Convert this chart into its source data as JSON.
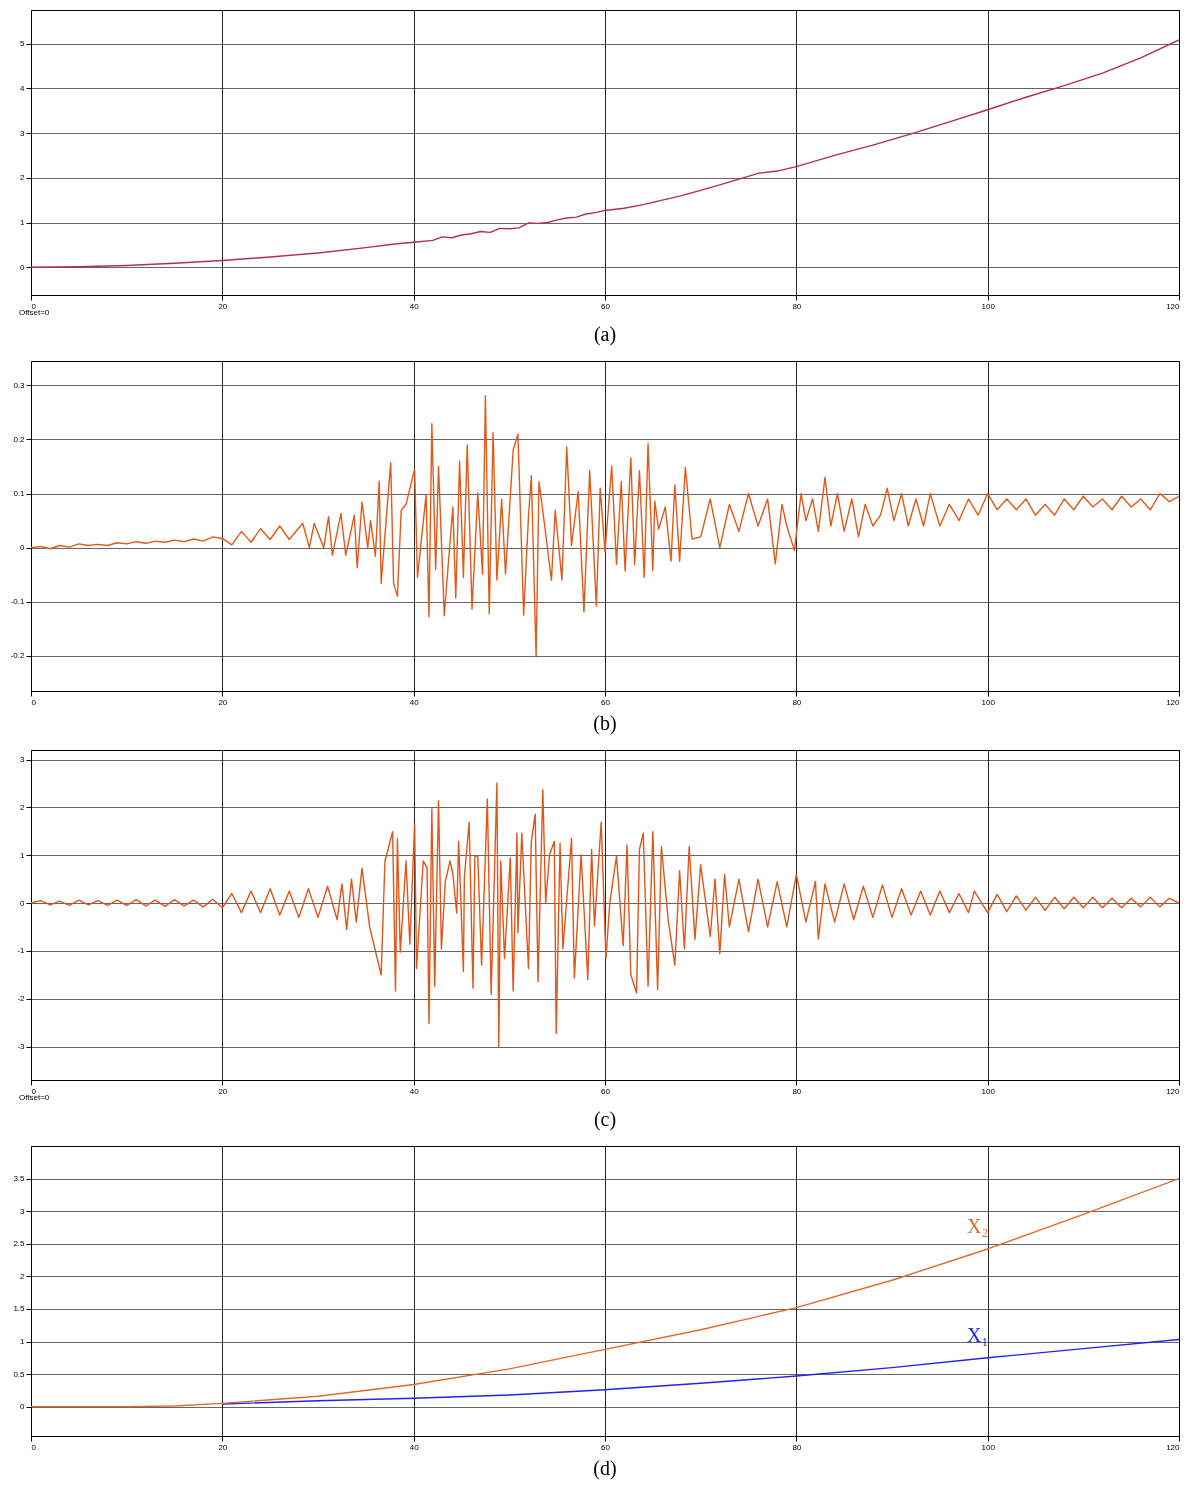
{
  "chart_data": [
    {
      "type": "line",
      "title": "(a)",
      "annotations": [
        "Offset=0"
      ],
      "xlim": [
        0,
        120
      ],
      "xticks": [
        0,
        20,
        40,
        60,
        80,
        100,
        120
      ],
      "ylim": [
        -0.62,
        5.75
      ],
      "yticks": [
        0,
        1,
        2,
        3,
        4,
        5
      ],
      "grid": true,
      "series": [
        {
          "color": "#b03050",
          "x": [
            0,
            5,
            10,
            15,
            20,
            25,
            30,
            35,
            38,
            40,
            42,
            43,
            44,
            45,
            46,
            47,
            48,
            49,
            50,
            51,
            52,
            53,
            54,
            55,
            56,
            57,
            58,
            59,
            60,
            62,
            64,
            66,
            68,
            70,
            72,
            74,
            76,
            78,
            80,
            84,
            88,
            92,
            96,
            100,
            104,
            108,
            112,
            116,
            120
          ],
          "values": [
            0,
            0.01,
            0.04,
            0.09,
            0.15,
            0.23,
            0.32,
            0.44,
            0.52,
            0.56,
            0.6,
            0.68,
            0.66,
            0.72,
            0.75,
            0.8,
            0.78,
            0.87,
            0.86,
            0.88,
            0.99,
            0.98,
            1.0,
            1.06,
            1.1,
            1.12,
            1.19,
            1.22,
            1.27,
            1.32,
            1.4,
            1.5,
            1.6,
            1.72,
            1.84,
            1.97,
            2.1,
            2.15,
            2.25,
            2.5,
            2.73,
            2.98,
            3.25,
            3.52,
            3.8,
            4.06,
            4.34,
            4.68,
            5.08
          ]
        }
      ]
    },
    {
      "type": "line",
      "title": "(b)",
      "xlim": [
        0,
        120
      ],
      "xticks": [
        0,
        20,
        40,
        60,
        80,
        100,
        120
      ],
      "ylim": [
        -0.265,
        0.345
      ],
      "yticks": [
        -0.2,
        -0.1,
        0,
        0.1,
        0.2,
        0.3
      ],
      "grid": true,
      "series": [
        {
          "color": "#e05a1a",
          "x": [
            0,
            1,
            2,
            3,
            4,
            5,
            6,
            7,
            8,
            9,
            10,
            11,
            12,
            13,
            14,
            15,
            16,
            17,
            18,
            19,
            20,
            21,
            22,
            23,
            24,
            25,
            26,
            27,
            28.4,
            29.1,
            29.6,
            30.6,
            31.1,
            31.5,
            32.4,
            32.9,
            33.8,
            34.1,
            34.6,
            35.2,
            35.5,
            36.0,
            36.4,
            36.6,
            37.6,
            37.9,
            38.3,
            38.7,
            39.2,
            40.1,
            40.4,
            41.3,
            41.6,
            41.9,
            42.3,
            42.6,
            43.2,
            43.6,
            44.1,
            44.4,
            44.8,
            45.2,
            45.6,
            46.1,
            46.7,
            47.2,
            47.5,
            47.9,
            48.3,
            48.7,
            49.2,
            49.6,
            50.4,
            50.9,
            51.5,
            52.0,
            52.3,
            52.8,
            53.1,
            53.7,
            54.4,
            54.8,
            55.5,
            56.0,
            56.5,
            57.2,
            57.8,
            58.4,
            59.1,
            59.5,
            60.0,
            60.7,
            61.2,
            61.7,
            62.1,
            62.7,
            63.1,
            63.6,
            64.1,
            64.5,
            65.0,
            65.2,
            65.6,
            66.3,
            66.9,
            67.3,
            67.8,
            68.4,
            69.1,
            70,
            71,
            72,
            73,
            74,
            75,
            76,
            77,
            77.8,
            78.5,
            79,
            79.8,
            80.5,
            81,
            81.7,
            82.3,
            83,
            83.6,
            84.3,
            85,
            85.8,
            86.5,
            87.2,
            88,
            88.8,
            89.5,
            90.2,
            91,
            91.7,
            92.5,
            93.3,
            94,
            95,
            96,
            97,
            98,
            99,
            100,
            101,
            102,
            103,
            104,
            105,
            106,
            107,
            108,
            109,
            110,
            111,
            112,
            113,
            114,
            115,
            116,
            117,
            118,
            119,
            120
          ],
          "values": [
            0,
            0.002,
            -0.002,
            0.004,
            0.001,
            0.007,
            0.004,
            0.006,
            0.004,
            0.009,
            0.007,
            0.011,
            0.008,
            0.012,
            0.01,
            0.014,
            0.011,
            0.016,
            0.012,
            0.02,
            0.017,
            0.005,
            0.03,
            0.01,
            0.035,
            0.015,
            0.04,
            0.015,
            0.045,
            0,
            0.045,
            0,
            0.057,
            -0.014,
            0.063,
            -0.014,
            0.06,
            -0.037,
            0.084,
            0,
            0.05,
            -0.016,
            0.123,
            -0.066,
            0.157,
            -0.066,
            -0.09,
            0.069,
            0.08,
            0.145,
            -0.055,
            0.098,
            -0.128,
            0.229,
            -0.04,
            0.15,
            -0.126,
            -0.034,
            0.075,
            -0.093,
            0.16,
            -0.055,
            0.19,
            -0.114,
            0.101,
            -0.049,
            0.281,
            -0.122,
            0.213,
            -0.06,
            0.089,
            -0.049,
            0.18,
            0.21,
            -0.125,
            0.057,
            0.133,
            -0.202,
            0.122,
            0.04,
            -0.06,
            0.069,
            -0.06,
            0.186,
            0.004,
            0.104,
            -0.119,
            0.142,
            -0.108,
            0.11,
            -0.008,
            0.151,
            -0.031,
            0.122,
            -0.043,
            0.166,
            -0.031,
            0.142,
            -0.055,
            0.192,
            -0.043,
            0.086,
            0.034,
            0.075,
            -0.025,
            0.116,
            -0.025,
            0.148,
            0.016,
            0.02,
            0.09,
            0,
            0.08,
            0.03,
            0.1,
            0.04,
            0.09,
            -0.03,
            0.08,
            0.04,
            -0.005,
            0.1,
            0.05,
            0.09,
            0.03,
            0.13,
            0.04,
            0.1,
            0.03,
            0.09,
            0.02,
            0.08,
            0.04,
            0.06,
            0.11,
            0.05,
            0.1,
            0.04,
            0.09,
            0.04,
            0.1,
            0.04,
            0.08,
            0.05,
            0.09,
            0.06,
            0.1,
            0.07,
            0.09,
            0.07,
            0.09,
            0.06,
            0.08,
            0.06,
            0.09,
            0.07,
            0.095,
            0.075,
            0.09,
            0.07,
            0.095,
            0.075,
            0.09,
            0.07,
            0.1,
            0.085,
            0.095
          ]
        }
      ]
    },
    {
      "type": "line",
      "title": "(c)",
      "annotations": [
        "Offset=0"
      ],
      "xlim": [
        0,
        120
      ],
      "xticks": [
        0,
        20,
        40,
        60,
        80,
        100,
        120
      ],
      "ylim": [
        -3.7,
        3.2
      ],
      "yticks": [
        -3,
        -2,
        -1,
        0,
        1,
        2,
        3
      ],
      "grid": true,
      "series": [
        {
          "color": "#e0561a",
          "x": [
            0,
            1,
            2,
            3,
            4,
            5,
            6,
            7,
            8,
            9,
            10,
            11,
            12,
            13,
            14,
            15,
            16,
            17,
            18,
            19,
            20,
            21,
            22,
            23,
            24,
            25,
            26,
            27,
            28,
            29,
            30,
            31,
            32,
            32.5,
            33,
            33.5,
            34,
            34.6,
            35.4,
            36.6,
            37.0,
            37.8,
            38.1,
            38.3,
            38.6,
            39.2,
            39.6,
            40.1,
            40.3,
            41.0,
            41.4,
            41.6,
            41.9,
            42.2,
            42.6,
            42.9,
            43.3,
            43.8,
            44.1,
            44.5,
            44.7,
            45.2,
            45.3,
            45.8,
            46.2,
            46.4,
            46.7,
            47.1,
            47.7,
            48.1,
            48.7,
            48.9,
            49.1,
            49.5,
            50.1,
            50.4,
            50.8,
            50.9,
            51.3,
            52.0,
            52.3,
            52.7,
            53.0,
            53.5,
            53.8,
            54.2,
            54.7,
            54.9,
            55.3,
            55.6,
            56.5,
            56.8,
            57.5,
            58.2,
            58.6,
            58.9,
            59.6,
            60.1,
            60.5,
            61.2,
            61.9,
            62.3,
            62.7,
            63.3,
            63.6,
            64.0,
            64.5,
            65.0,
            65.5,
            65.9,
            66.6,
            67.3,
            67.8,
            68.3,
            68.8,
            69.4,
            70,
            71,
            71.5,
            72,
            72.5,
            73,
            74,
            75,
            76,
            77,
            78,
            79,
            80,
            81,
            82,
            82.3,
            83,
            84,
            85,
            86,
            87,
            88,
            89,
            90,
            91,
            92,
            93,
            94,
            95,
            96,
            97,
            98,
            98.6,
            100,
            101,
            102,
            103,
            104,
            105,
            106,
            107,
            108,
            109,
            110,
            111,
            112,
            113,
            114,
            115,
            116,
            117,
            118,
            119,
            120
          ],
          "values": [
            0,
            0.05,
            -0.04,
            0.04,
            -0.05,
            0.06,
            -0.04,
            0.05,
            -0.05,
            0.06,
            -0.05,
            0.07,
            -0.06,
            0.06,
            -0.07,
            0.07,
            -0.06,
            0.06,
            -0.08,
            0.08,
            -0.1,
            0.2,
            -0.2,
            0.25,
            -0.2,
            0.3,
            -0.25,
            0.25,
            -0.3,
            0.3,
            -0.3,
            0.35,
            -0.35,
            0.4,
            -0.55,
            0.5,
            -0.4,
            0.73,
            -0.5,
            -1.5,
            0.88,
            1.49,
            -1.84,
            1.34,
            -1.03,
            0.88,
            -0.86,
            1.66,
            -1.37,
            0.88,
            0.74,
            -2.52,
            1.97,
            -1.74,
            2.14,
            -0.96,
            0.44,
            0.88,
            0.61,
            -0.21,
            1.29,
            -1.43,
            0.54,
            1.69,
            -1.78,
            0.98,
            0.98,
            -1.3,
            2.17,
            -1.91,
            2.51,
            -3.0,
            0.88,
            -1.16,
            0.95,
            -1.84,
            1.46,
            -0.62,
            1.46,
            -1.37,
            1.29,
            1.86,
            -1.64,
            2.37,
            0,
            1.01,
            1.29,
            -2.73,
            1.25,
            -0.96,
            1.35,
            -1.57,
            1.01,
            -1.6,
            1.12,
            -0.48,
            1.69,
            -1.16,
            0,
            0.98,
            -0.89,
            1.22,
            -1.5,
            -1.88,
            1.12,
            1.46,
            -1.74,
            1.49,
            -1.81,
            1.18,
            -0.35,
            -1.3,
            0.67,
            -0.96,
            1.18,
            -0.76,
            0.8,
            -0.7,
            0.5,
            -1.06,
            0.6,
            -0.5,
            0.5,
            -0.6,
            0.5,
            -0.5,
            0.45,
            -0.5,
            0.6,
            -0.4,
            0.45,
            -0.75,
            0.4,
            -0.4,
            0.4,
            -0.35,
            0.35,
            -0.3,
            0.38,
            -0.3,
            0.3,
            -0.25,
            0.25,
            -0.25,
            0.25,
            -0.2,
            0.2,
            -0.2,
            0.25,
            -0.2,
            0.18,
            -0.18,
            0.15,
            -0.15,
            0.12,
            -0.15,
            0.12,
            -0.12,
            0.12,
            -0.1,
            0.12,
            -0.1,
            0.1,
            -0.1,
            0.1,
            -0.08,
            0.12,
            -0.08,
            0.1,
            0
          ]
        }
      ]
    },
    {
      "type": "line",
      "title": "(d)",
      "xlim": [
        0,
        120
      ],
      "xticks": [
        0,
        20,
        40,
        60,
        80,
        100,
        120
      ],
      "ylim": [
        -0.45,
        4.0
      ],
      "yticks": [
        0,
        0.5,
        1,
        1.5,
        2,
        2.5,
        3,
        3.5
      ],
      "grid": true,
      "x": [
        0,
        10,
        15,
        20,
        30,
        40,
        50,
        60,
        70,
        80,
        90,
        100,
        110,
        120
      ],
      "series": [
        {
          "name": "X₂",
          "color": "#e06a2a",
          "values": [
            0,
            0,
            0.01,
            0.05,
            0.16,
            0.34,
            0.58,
            0.88,
            1.18,
            1.52,
            1.94,
            2.42,
            2.95,
            3.5
          ]
        },
        {
          "name": "X₁",
          "color": "#2222ee",
          "values": [
            null,
            null,
            null,
            0.04,
            0.09,
            0.13,
            0.18,
            0.26,
            0.36,
            0.47,
            0.6,
            0.75,
            0.89,
            1.03
          ]
        }
      ]
    }
  ]
}
